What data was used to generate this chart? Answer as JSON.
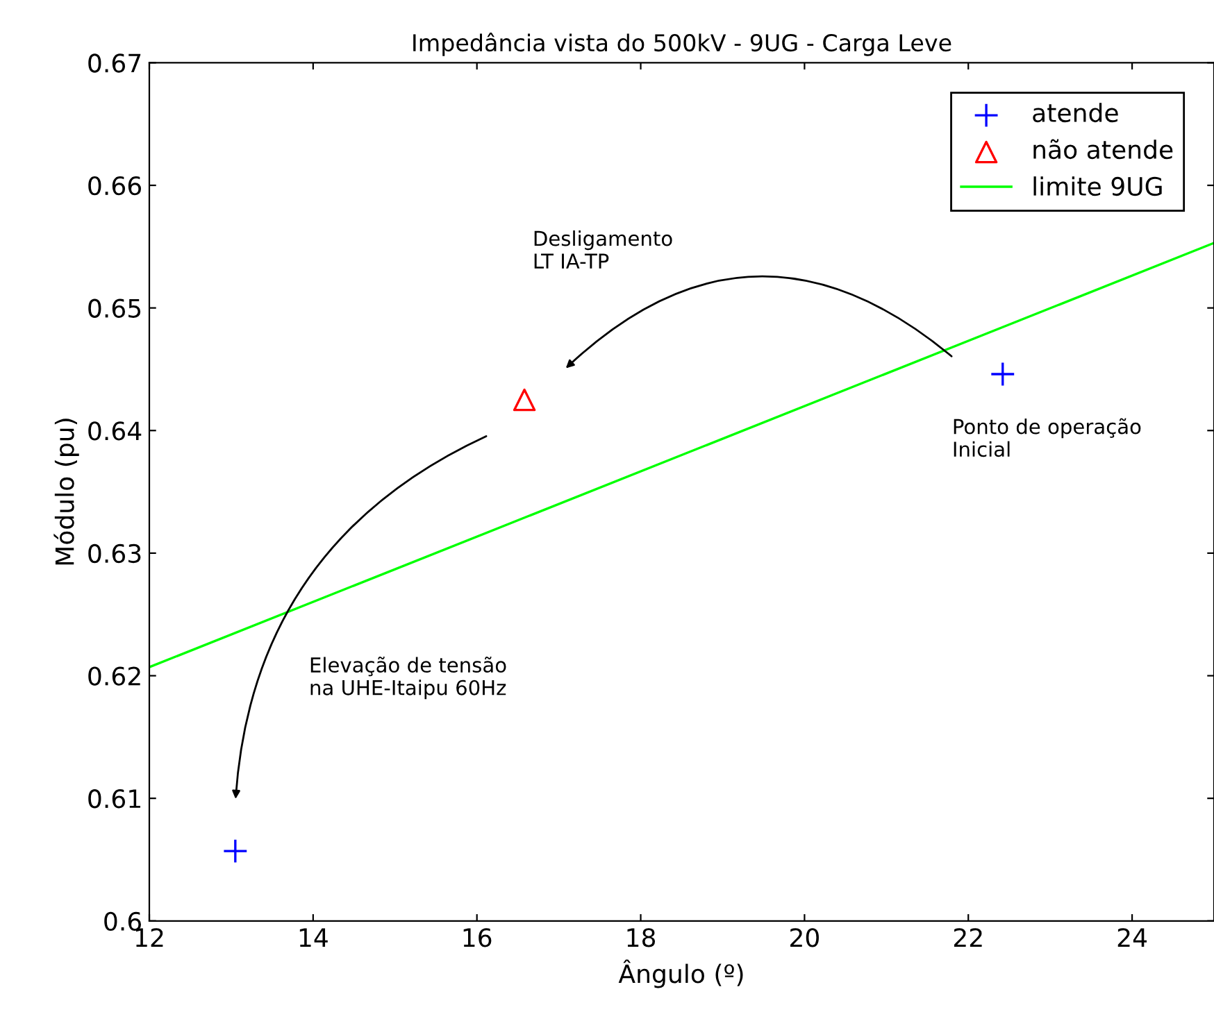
{
  "chart_data": {
    "type": "scatter",
    "title": "Impedância vista do 500kV - 9UG - Carga Leve",
    "xlabel": "Ângulo (º)",
    "ylabel": "Módulo (pu)",
    "series": [
      {
        "name": "atende",
        "color": "#0000ff",
        "marker": "cross",
        "x": [
          13.05,
          22.42
        ],
        "values": [
          0.6057,
          0.6446
        ]
      },
      {
        "name": "não atende",
        "color": "#ff0000",
        "marker": "triangle",
        "x": [
          16.58
        ],
        "values": [
          0.6425
        ]
      },
      {
        "name": "limite 9UG",
        "type": "line",
        "color": "#00ff00",
        "marker": "none",
        "x": [
          12,
          25
        ],
        "values": [
          0.6207,
          0.6553
        ]
      }
    ],
    "annotations": [
      "Desligamento\nLT IA-TP",
      "Elevação de tensão\nna UHE-Itaipu 60Hz",
      "Ponto de operação\nInicial"
    ],
    "xlim": [
      12,
      25
    ],
    "xticks": [
      12,
      14,
      16,
      18,
      20,
      22,
      24
    ],
    "ylim": [
      0.6,
      0.67
    ],
    "yticks": [
      0.6,
      0.61,
      0.62,
      0.63,
      0.64,
      0.65,
      0.66,
      0.67
    ],
    "grid": false,
    "legend": "top right"
  }
}
